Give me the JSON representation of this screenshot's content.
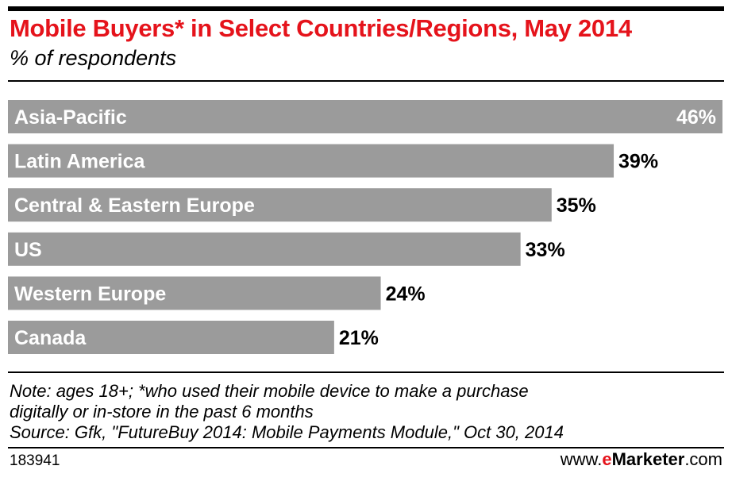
{
  "chart_data": {
    "type": "bar",
    "orientation": "horizontal",
    "title": "Mobile Buyers* in Select Countries/Regions, May 2014",
    "subtitle": "% of respondents",
    "categories": [
      "Asia-Pacific",
      "Latin America",
      "Central & Eastern Europe",
      "US",
      "Western Europe",
      "Canada"
    ],
    "values": [
      46,
      39,
      35,
      33,
      24,
      21
    ],
    "data_labels": [
      "46%",
      "39%",
      "35%",
      "33%",
      "24%",
      "21%"
    ],
    "xlim": [
      0,
      46
    ],
    "grid": false,
    "legend": "none",
    "bar_color": "#9b9b9b"
  },
  "notes": {
    "line1": "Note: ages 18+; *who used their mobile device to make a purchase",
    "line2": "digitally or in-store in the past 6 months",
    "line3": "Source: Gfk, \"FutureBuy 2014: Mobile Payments Module,\" Oct 30, 2014"
  },
  "footer": {
    "chart_id": "183941",
    "brand_prefix": "www.",
    "brand_e": "e",
    "brand_name": "Marketer",
    "brand_suffix": ".com"
  },
  "colors": {
    "title": "#e5131b",
    "bar": "#9b9b9b"
  }
}
